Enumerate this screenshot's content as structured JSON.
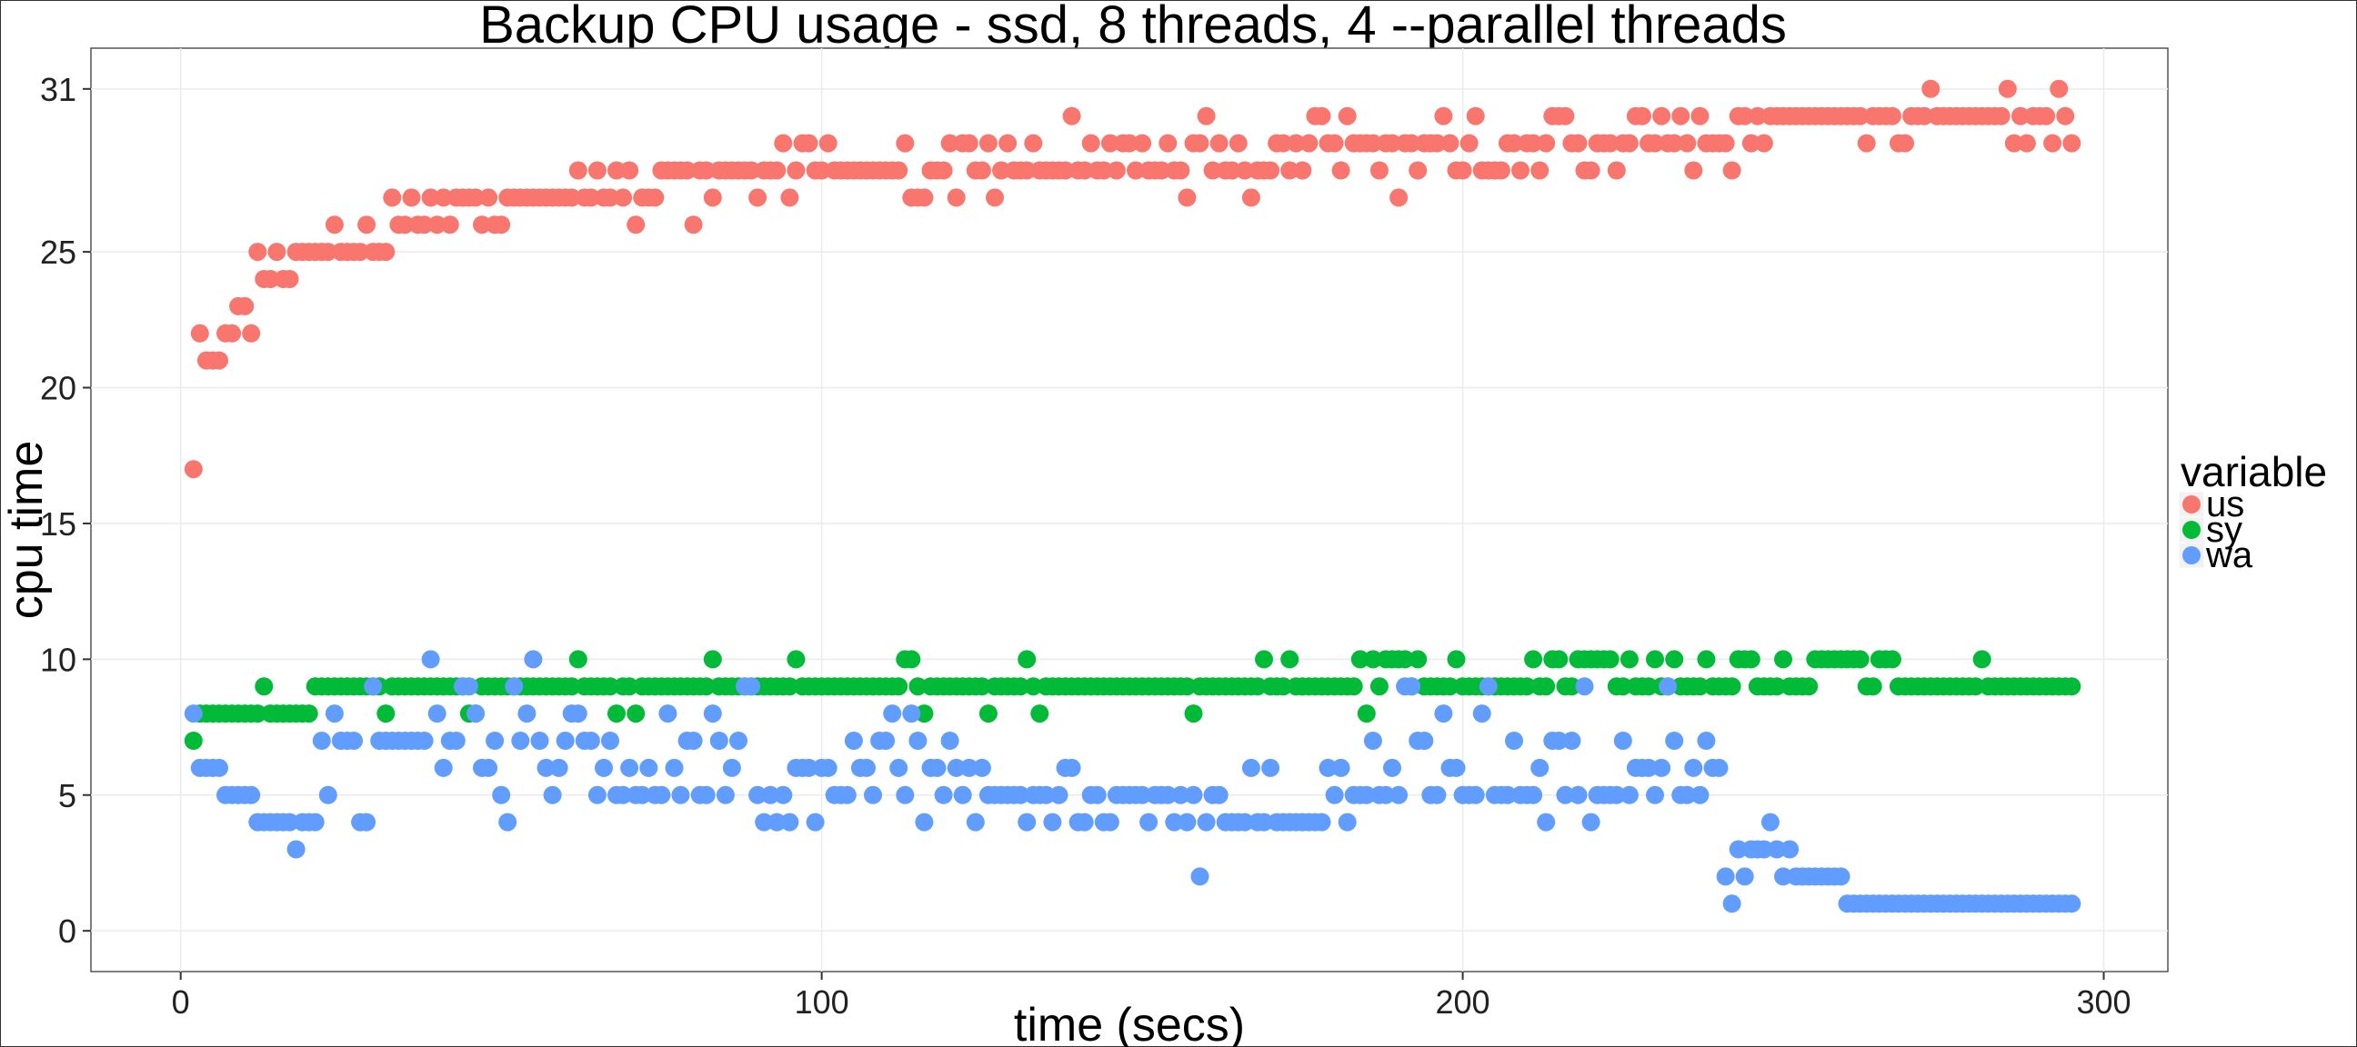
{
  "chart_data": {
    "type": "scatter",
    "title": "Backup CPU usage - ssd,  8  threads,  4  --parallel threads",
    "xlabel": "time (secs)",
    "ylabel": "cpu time",
    "xlim": [
      -14,
      310
    ],
    "ylim": [
      -1.5,
      32.5
    ],
    "x_ticks": [
      0,
      100,
      200,
      300
    ],
    "y_ticks": [
      0,
      5,
      10,
      15,
      20,
      25,
      31
    ],
    "y_tick_labels": [
      "0",
      "5",
      "10",
      "15",
      "20",
      "25",
      "31"
    ],
    "grid": true,
    "legend": {
      "title": "variable",
      "position": "right"
    },
    "series": [
      {
        "name": "us",
        "color": "#F8766D",
        "points": []
      },
      {
        "name": "sy",
        "color": "#00BA38",
        "points": []
      },
      {
        "name": "wa",
        "color": "#619CFF",
        "points": []
      }
    ]
  }
}
